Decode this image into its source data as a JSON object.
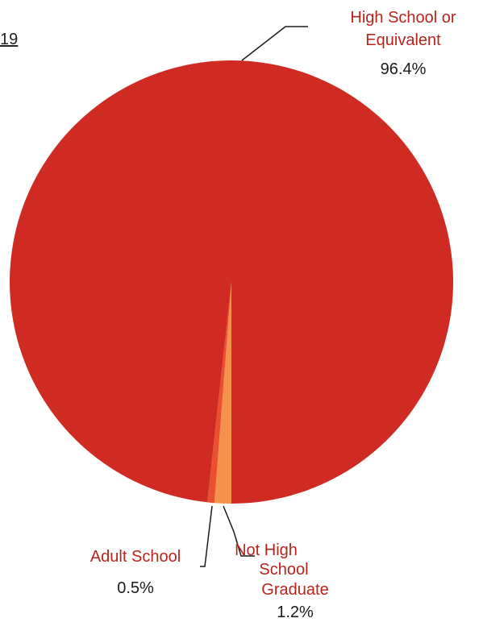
{
  "chart_data": {
    "type": "pie",
    "title_fragment": "19",
    "slices": [
      {
        "name": "Not High School Graduate",
        "value": 1.2,
        "label": "1.2%",
        "label_lines": [
          "Not High",
          "School",
          "Graduate"
        ],
        "color": "#F4914A"
      },
      {
        "name": "Adult School",
        "value": 0.5,
        "label": "0.5%",
        "label_lines": [
          "Adult School"
        ],
        "color": "#E8502E"
      },
      {
        "name": "High School or Equivalent",
        "value": 96.4,
        "label": "96.4%",
        "label_lines": [
          "High School or",
          "Equivalent"
        ],
        "color": "#CF2B23"
      }
    ],
    "category_text_color": "#B8231C",
    "value_text_color": "#1A1A1A",
    "leader_line_color": "#1A1A1A"
  }
}
